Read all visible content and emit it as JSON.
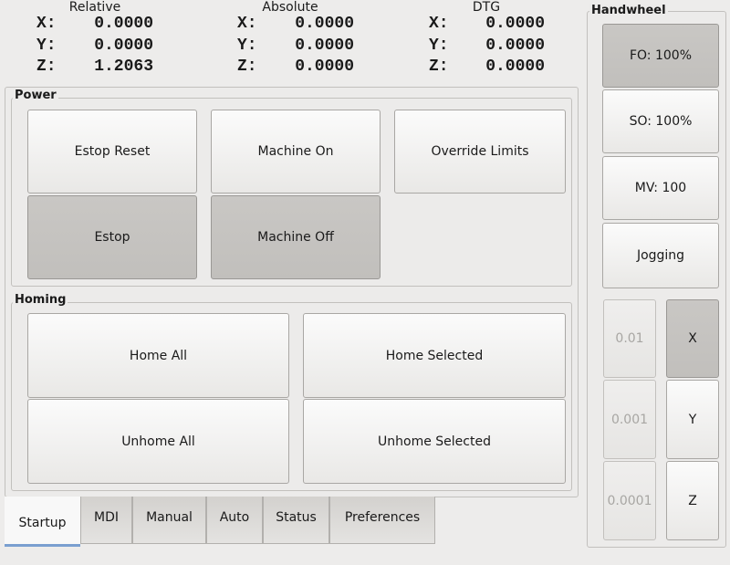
{
  "dro": {
    "relative": {
      "title": "Relative",
      "x": "0.0000",
      "y": "0.0000",
      "z": "1.2063"
    },
    "absolute": {
      "title": "Absolute",
      "x": "0.0000",
      "y": "0.0000",
      "z": "0.0000"
    },
    "dtg": {
      "title": "DTG",
      "x": "0.0000",
      "y": "0.0000",
      "z": "0.0000"
    },
    "labels": {
      "x": "X:",
      "y": "Y:",
      "z": "Z:"
    }
  },
  "power": {
    "title": "Power",
    "estop_reset": "Estop Reset",
    "machine_on": "Machine On",
    "override_limits": "Override Limits",
    "estop": "Estop",
    "machine_off": "Machine Off"
  },
  "homing": {
    "title": "Homing",
    "home_all": "Home All",
    "home_selected": "Home Selected",
    "unhome_all": "Unhome All",
    "unhome_selected": "Unhome Selected"
  },
  "tabs": [
    "Startup",
    "MDI",
    "Manual",
    "Auto",
    "Status",
    "Preferences"
  ],
  "handwheel": {
    "title": "Handwheel",
    "fo": "FO: 100%",
    "so": "SO: 100%",
    "mv": "MV: 100",
    "jogging": "Jogging",
    "increments": [
      "0.01",
      "0.001",
      "0.0001"
    ],
    "axes": [
      "X",
      "Y",
      "Z"
    ]
  }
}
